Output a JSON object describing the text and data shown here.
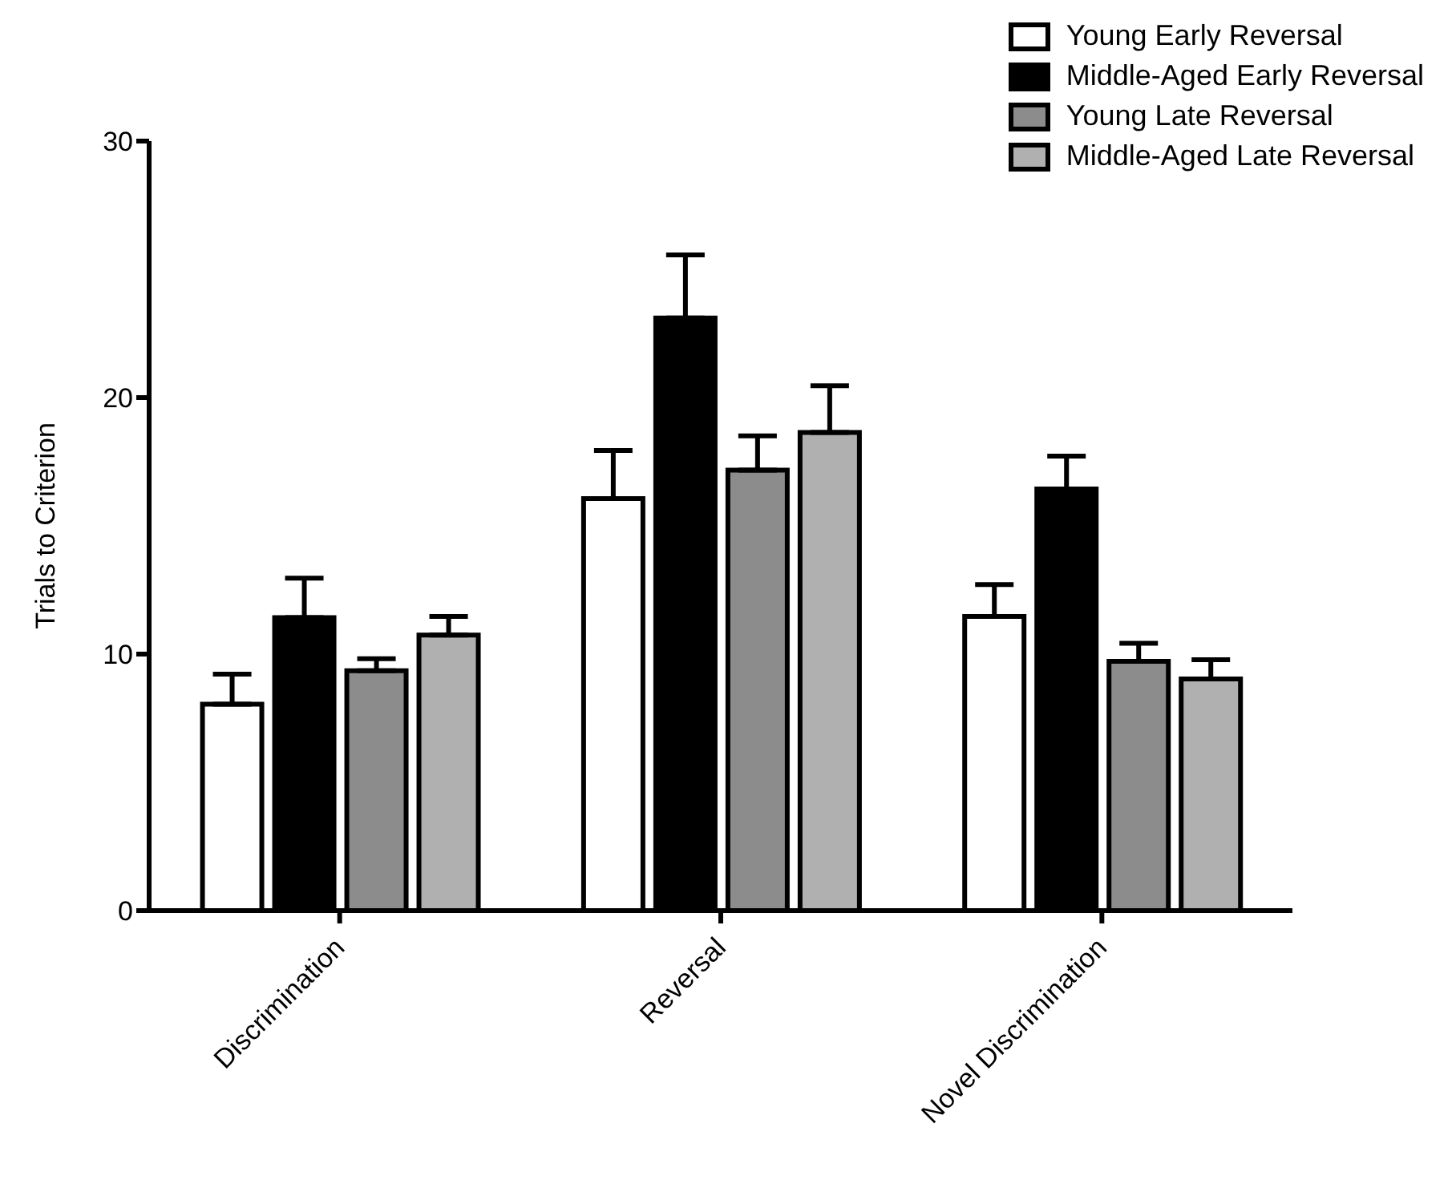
{
  "chart_data": {
    "type": "bar",
    "ylabel": "Trials to Criterion",
    "categories": [
      "Discrimination",
      "Reversal",
      "Novel Discrimination"
    ],
    "series": [
      {
        "name": "Young Early Reversal",
        "color": "#ffffff",
        "values": [
          8.05,
          16.06,
          11.47
        ],
        "errors": [
          [
            8.05,
            9.22
          ],
          [
            16.06,
            17.94
          ],
          [
            11.47,
            12.71
          ]
        ]
      },
      {
        "name": "Middle-Aged Early Reversal",
        "color": "#000000",
        "values": [
          11.42,
          23.1,
          16.44
        ],
        "errors": [
          [
            11.42,
            12.96
          ],
          [
            23.1,
            25.56
          ],
          [
            16.44,
            17.72
          ]
        ]
      },
      {
        "name": "Young Late Reversal",
        "color": "#8c8c8c",
        "values": [
          9.35,
          17.17,
          9.72
        ],
        "errors": [
          [
            9.35,
            9.82
          ],
          [
            17.17,
            18.51
          ],
          [
            9.72,
            10.42
          ]
        ]
      },
      {
        "name": "Middle-Aged Late Reversal",
        "color": "#b0b0b0",
        "values": [
          10.74,
          18.64,
          9.03
        ],
        "errors": [
          [
            10.74,
            11.47
          ],
          [
            18.64,
            20.46
          ],
          [
            9.03,
            9.78
          ]
        ]
      }
    ],
    "ylim": [
      0,
      30
    ],
    "yticks": [
      0,
      10,
      20,
      30
    ],
    "legend": "top right"
  }
}
